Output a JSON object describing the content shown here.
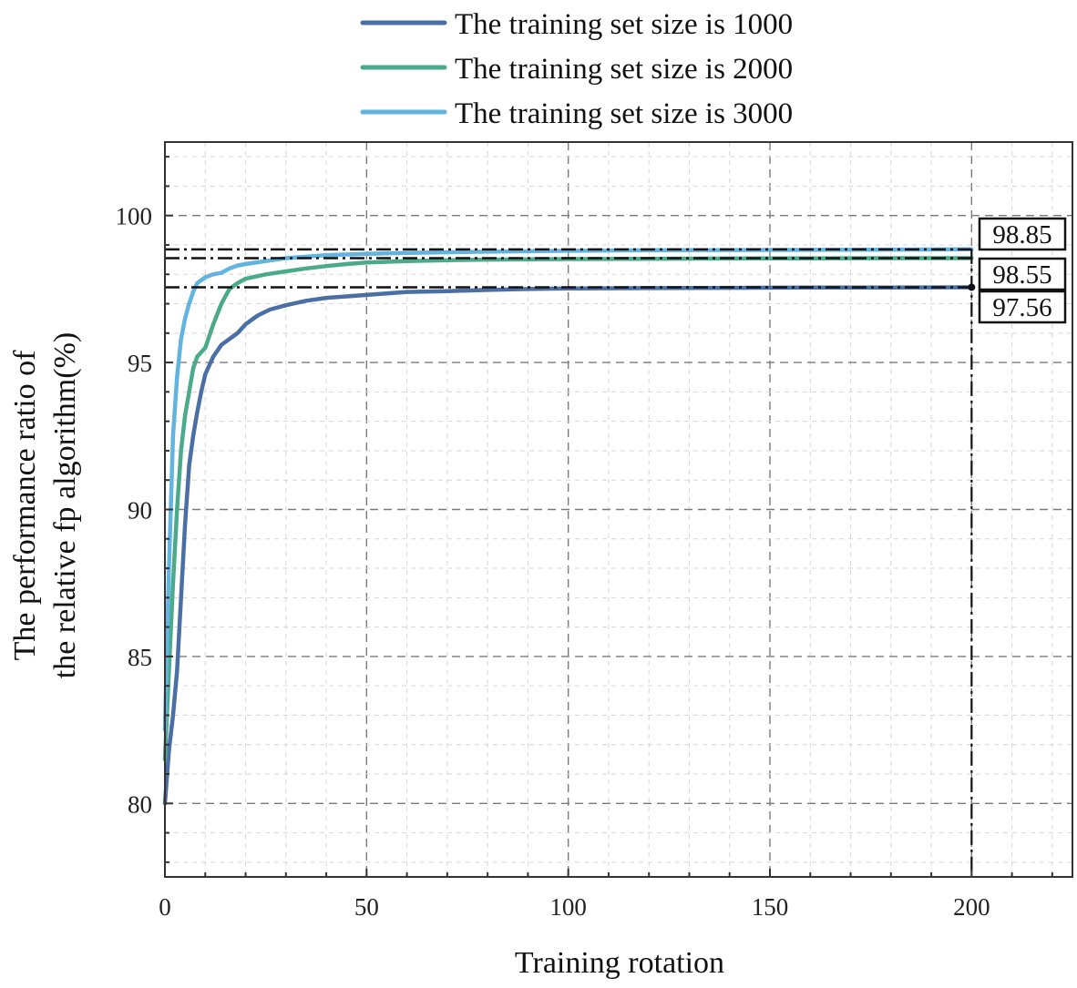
{
  "chart_data": {
    "type": "line",
    "title": "",
    "xlabel": "Training rotation",
    "ylabel_lines": [
      "The performance ratio of",
      "the relative fp algorithm(%)"
    ],
    "xlim": [
      0,
      225
    ],
    "ylim": [
      77.5,
      102.5
    ],
    "xticks": [
      0,
      50,
      100,
      150,
      200
    ],
    "yticks": [
      80,
      85,
      90,
      95,
      100
    ],
    "grid": true,
    "legend_position": "top-center",
    "series": [
      {
        "name": "The training set size is 1000",
        "color": "#4a6fa5",
        "x": [
          0,
          1,
          2,
          3,
          4,
          5,
          6,
          7,
          8,
          9,
          10,
          12,
          14,
          16,
          18,
          20,
          23,
          26,
          30,
          35,
          40,
          50,
          60,
          70,
          80,
          90,
          100,
          120,
          140,
          160,
          180,
          200
        ],
        "y": [
          80.0,
          81.8,
          83.0,
          84.5,
          87.0,
          89.5,
          91.5,
          92.5,
          93.3,
          94.0,
          94.6,
          95.2,
          95.6,
          95.8,
          96.0,
          96.3,
          96.6,
          96.8,
          96.95,
          97.1,
          97.2,
          97.3,
          97.4,
          97.43,
          97.47,
          97.5,
          97.52,
          97.53,
          97.54,
          97.55,
          97.55,
          97.56
        ]
      },
      {
        "name": "The training set size is 2000",
        "color": "#4caa8c",
        "x": [
          0,
          1,
          2,
          3,
          4,
          5,
          6,
          7,
          8,
          10,
          12,
          14,
          16,
          18,
          20,
          25,
          30,
          35,
          40,
          45,
          50,
          60,
          70,
          80,
          100,
          120,
          150,
          180,
          200
        ],
        "y": [
          81.5,
          84.5,
          87.5,
          90.0,
          92.0,
          93.2,
          94.0,
          94.8,
          95.2,
          95.5,
          96.3,
          97.0,
          97.5,
          97.7,
          97.85,
          98.0,
          98.1,
          98.2,
          98.28,
          98.35,
          98.4,
          98.45,
          98.48,
          98.5,
          98.52,
          98.53,
          98.54,
          98.55,
          98.55
        ]
      },
      {
        "name": "The training set size is 3000",
        "color": "#62b3de",
        "x": [
          0,
          1,
          2,
          3,
          4,
          5,
          6,
          7,
          8,
          10,
          12,
          14,
          16,
          18,
          20,
          25,
          30,
          40,
          50,
          60,
          80,
          100,
          120,
          150,
          180,
          200
        ],
        "y": [
          82.5,
          88.0,
          92.5,
          94.5,
          95.8,
          96.5,
          97.0,
          97.4,
          97.7,
          97.9,
          98.0,
          98.05,
          98.2,
          98.3,
          98.35,
          98.45,
          98.55,
          98.65,
          98.7,
          98.73,
          98.77,
          98.8,
          98.82,
          98.83,
          98.84,
          98.85
        ]
      }
    ],
    "reference_lines": {
      "horizontal": [
        98.85,
        98.55,
        97.56
      ],
      "vertical_x": 200,
      "labels": [
        "98.85",
        "98.55",
        "97.56"
      ]
    }
  }
}
